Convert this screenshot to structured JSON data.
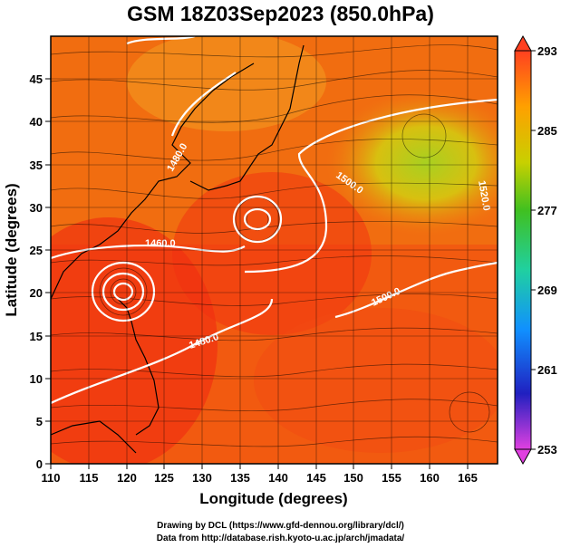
{
  "title": "GSM 18Z03Sep2023 (850.0hPa)",
  "x_axis": {
    "label": "Longitude (degrees)",
    "ticks": [
      "110",
      "115",
      "120",
      "125",
      "130",
      "135",
      "140",
      "145",
      "150",
      "155",
      "160",
      "165"
    ],
    "range": [
      110,
      169
    ]
  },
  "y_axis": {
    "label": "Latitude (degrees)",
    "ticks": [
      "0",
      "5",
      "10",
      "15",
      "20",
      "25",
      "30",
      "35",
      "40",
      "45"
    ],
    "range": [
      0,
      50
    ]
  },
  "colorbar": {
    "ticks": [
      "253",
      "261",
      "269",
      "277",
      "285",
      "293"
    ],
    "range": [
      253,
      293
    ],
    "colors": [
      "#e040e0",
      "#2020c0",
      "#1090ff",
      "#20d0a0",
      "#40c020",
      "#c8d000",
      "#ffa000",
      "#ff4020"
    ]
  },
  "contour_labels": [
    "1480.0",
    "1460.0",
    "1480.0",
    "1500.0",
    "1520.0",
    "1500.0"
  ],
  "credits": {
    "line1": "Drawing by DCL (https://www.gfd-dennou.org/library/dcl/)",
    "line2": "Data from http://database.rish.kyoto-u.ac.jp/arch/jmadata/"
  }
}
